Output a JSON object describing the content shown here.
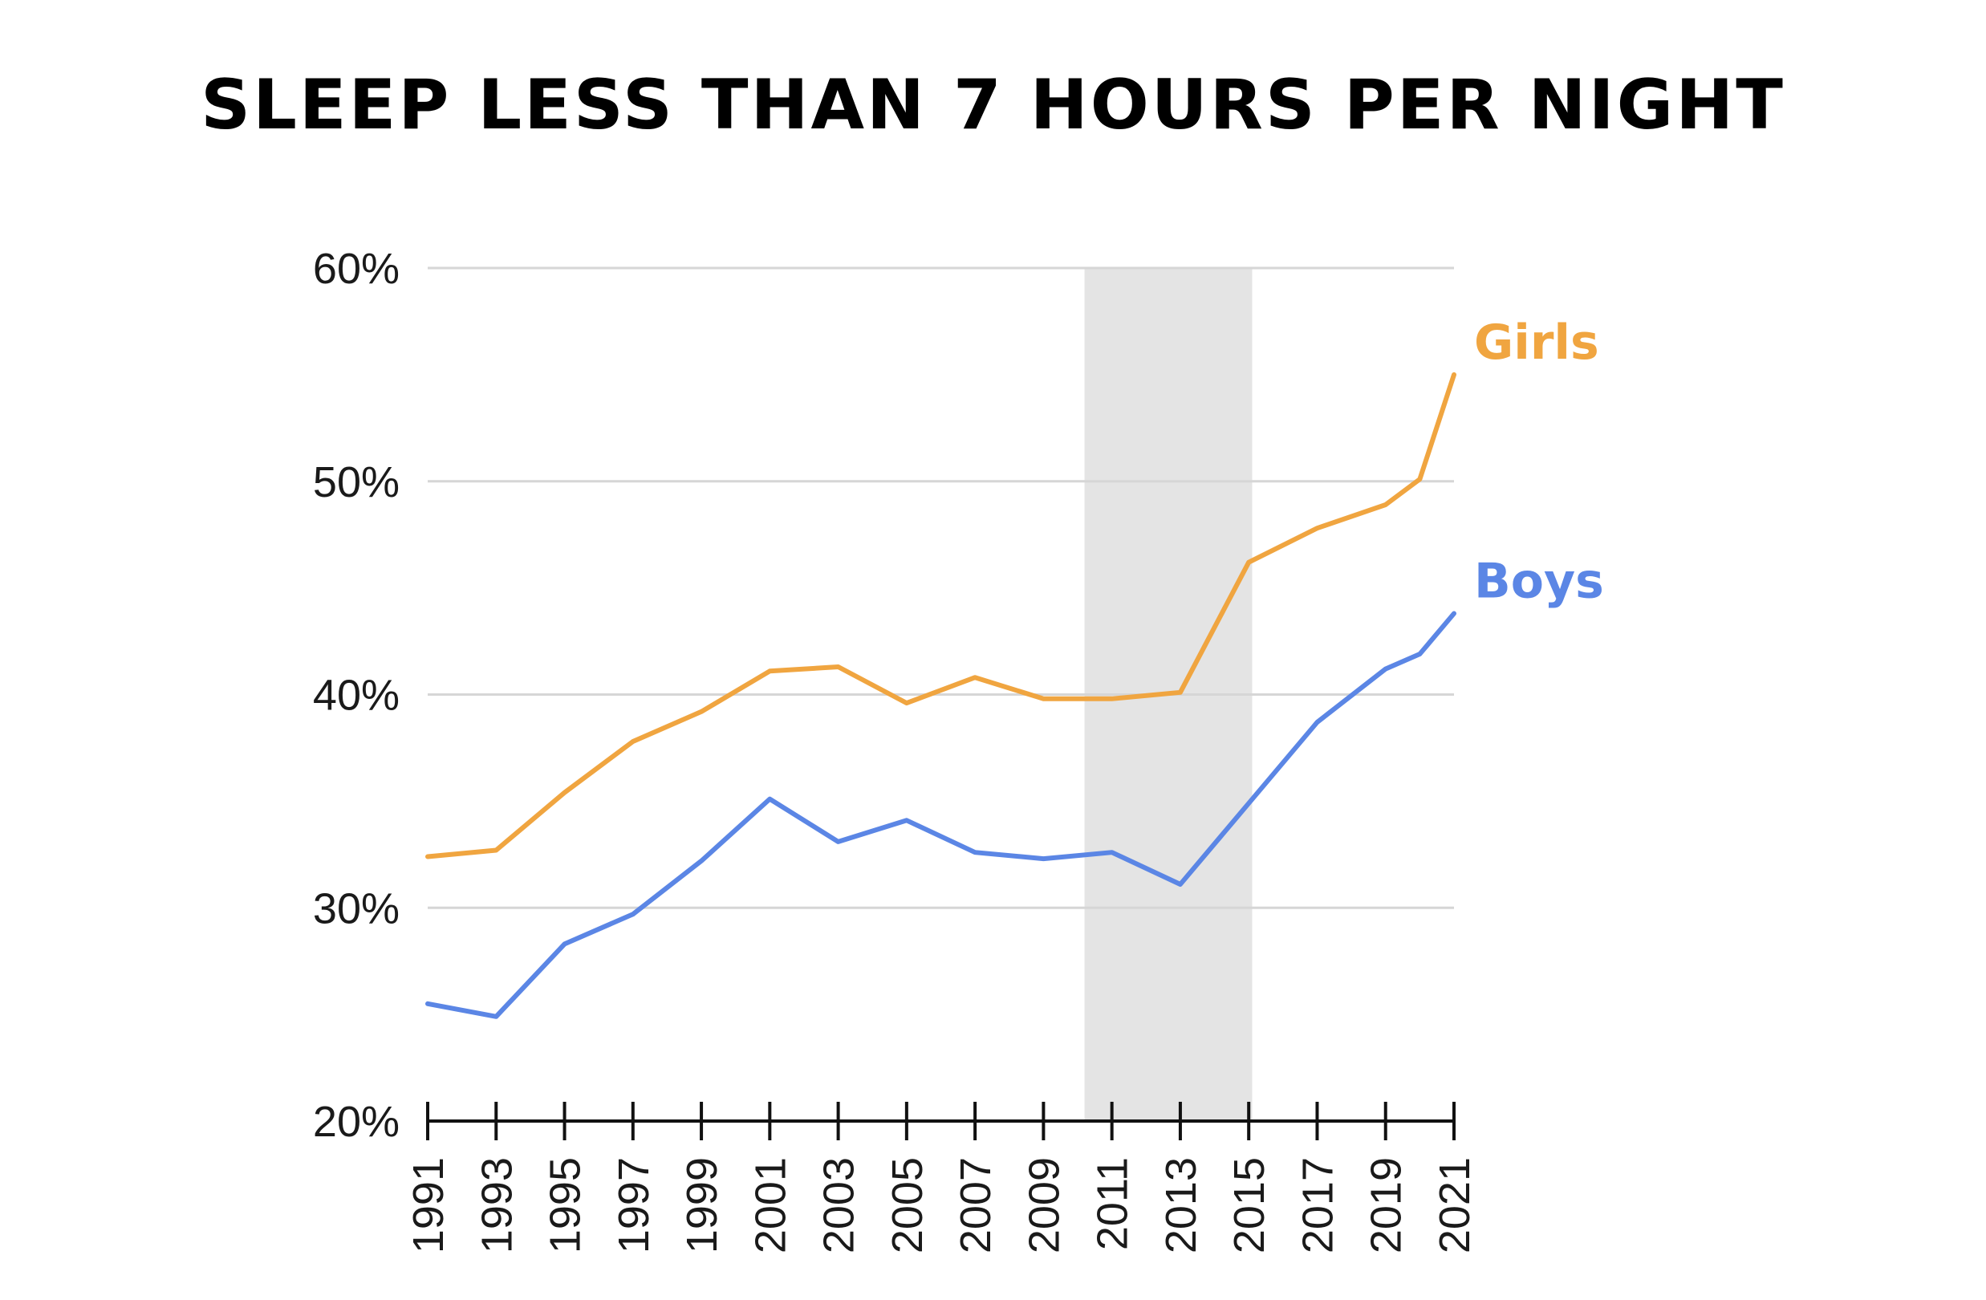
{
  "chart_data": {
    "type": "line",
    "title": "SLEEP LESS THAN 7 HOURS PER NIGHT",
    "xlabel": "",
    "ylabel": "",
    "ylim": [
      20,
      60
    ],
    "yticks": [
      20,
      30,
      40,
      50,
      60
    ],
    "ytick_labels": [
      "20%",
      "30%",
      "40%",
      "50%",
      "60%"
    ],
    "grid": true,
    "xlim": [
      1991,
      2021
    ],
    "xticks": [
      1991,
      1993,
      1995,
      1997,
      1999,
      2001,
      2003,
      2005,
      2007,
      2009,
      2011,
      2013,
      2015,
      2017,
      2019,
      2021
    ],
    "xtick_labels": [
      "1991",
      "1993",
      "1995",
      "1997",
      "1999",
      "2001",
      "2003",
      "2005",
      "2007",
      "2009",
      "2011",
      "2013",
      "2015",
      "2017",
      "2019",
      "2021"
    ],
    "shaded_region": {
      "x_start": 2010.2,
      "x_end": 2015.1,
      "color": "#e4e4e4"
    },
    "series": [
      {
        "name": "Girls",
        "color": "#f0a540",
        "x": [
          1991,
          1993,
          1995,
          1997,
          1999,
          2001,
          2003,
          2005,
          2007,
          2009,
          2011,
          2013,
          2015,
          2017,
          2019,
          2020,
          2021
        ],
        "values": [
          32.4,
          32.7,
          35.4,
          37.8,
          39.2,
          41.1,
          41.3,
          39.6,
          40.8,
          39.8,
          39.8,
          40.1,
          46.2,
          47.8,
          48.9,
          50.1,
          55.0
        ]
      },
      {
        "name": "Boys",
        "color": "#5b86e5",
        "x": [
          1991,
          1993,
          1995,
          1997,
          1999,
          2001,
          2003,
          2005,
          2007,
          2009,
          2011,
          2013,
          2015,
          2017,
          2019,
          2020,
          2021
        ],
        "values": [
          25.5,
          24.9,
          28.3,
          29.7,
          32.2,
          35.1,
          33.1,
          34.1,
          32.6,
          32.3,
          32.6,
          31.1,
          34.9,
          38.7,
          41.2,
          41.9,
          43.8
        ]
      }
    ]
  }
}
